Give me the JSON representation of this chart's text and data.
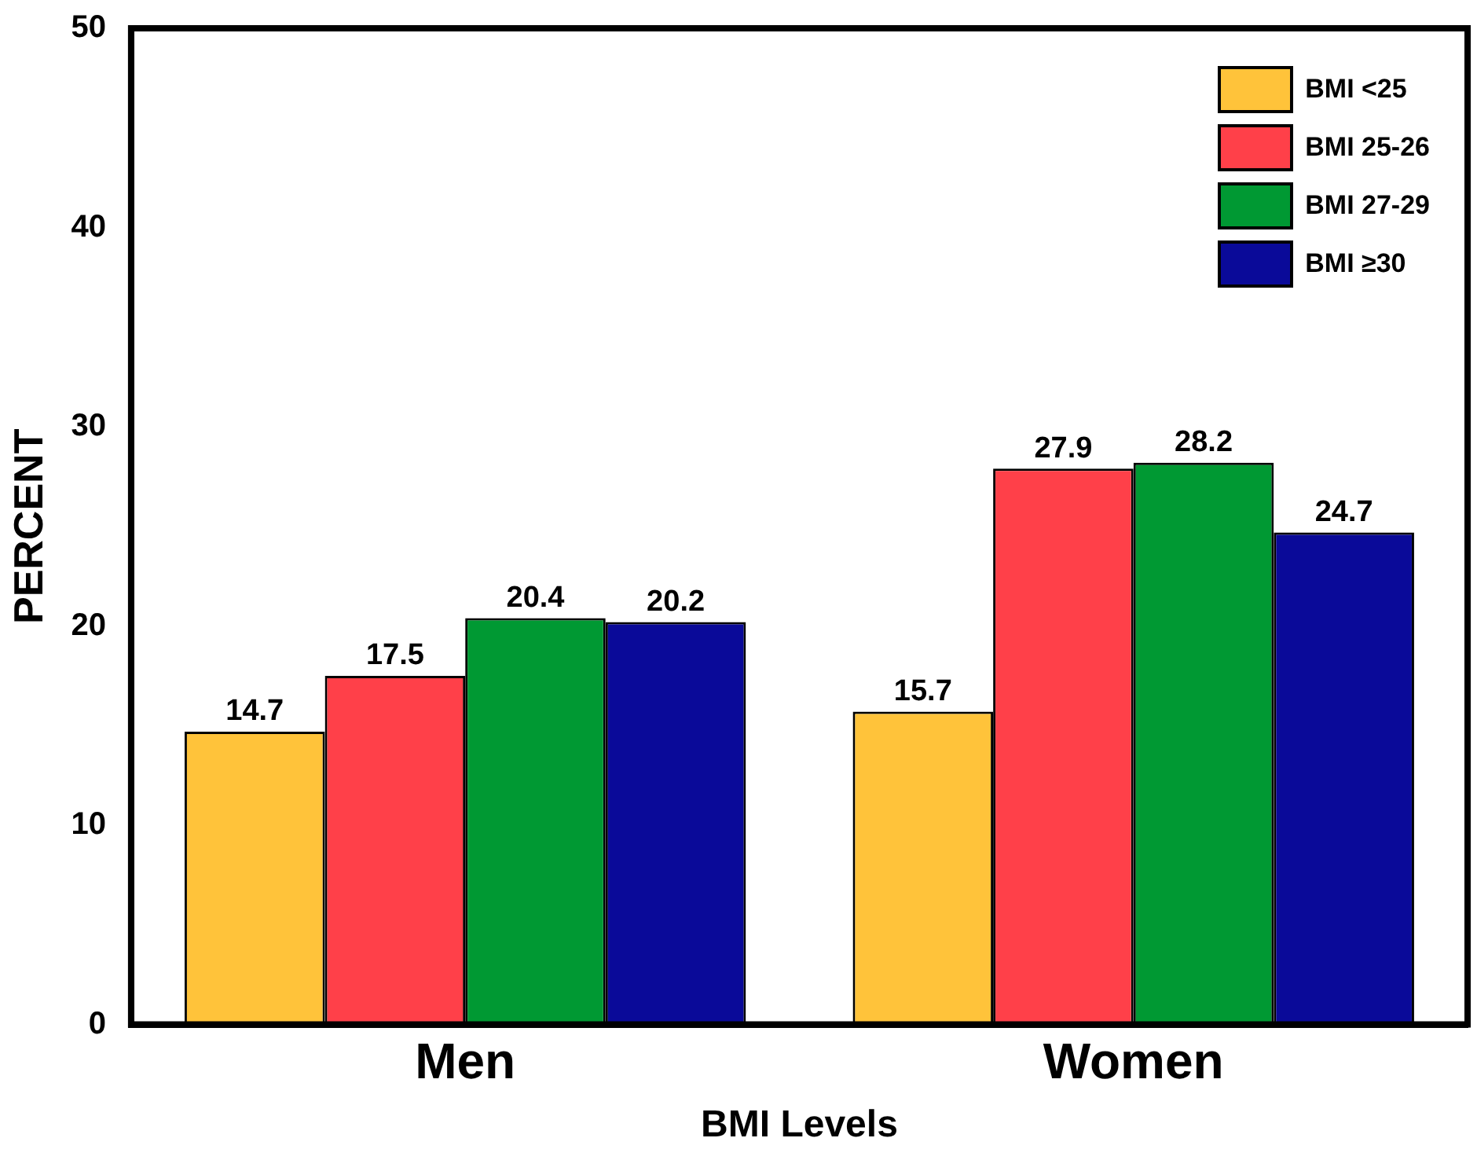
{
  "chart_data": {
    "type": "bar",
    "xlabel": "BMI Levels",
    "ylabel": "PERCENT",
    "categories": [
      "Men",
      "Women"
    ],
    "series": [
      {
        "name": "BMI <25",
        "color": "#ffc33a",
        "values": [
          14.7,
          15.7
        ]
      },
      {
        "name": "BMI 25-26",
        "color": "#ff4049",
        "values": [
          17.5,
          27.9
        ]
      },
      {
        "name": "BMI 27-29",
        "color": "#009933",
        "values": [
          20.4,
          28.2
        ]
      },
      {
        "name": "BMI ≥30",
        "color": "#0a0a99",
        "values": [
          20.2,
          24.7
        ]
      }
    ],
    "ylim": [
      0,
      50
    ],
    "yticks": [
      0,
      10,
      20,
      30,
      40,
      50
    ],
    "grid": false,
    "legend": "top right",
    "data_labels": true
  }
}
